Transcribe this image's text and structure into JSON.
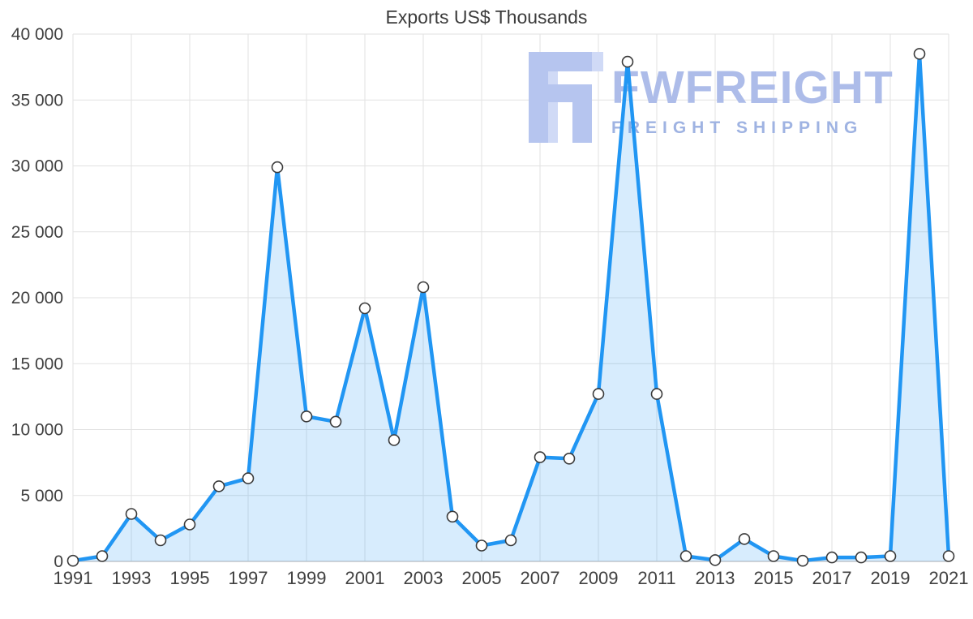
{
  "chart_data": {
    "type": "area",
    "title": "Exports US$ Thousands",
    "xlabel": "",
    "ylabel": "",
    "x": [
      1991,
      1992,
      1993,
      1994,
      1995,
      1996,
      1997,
      1998,
      1999,
      2000,
      2001,
      2002,
      2003,
      2004,
      2005,
      2006,
      2007,
      2008,
      2009,
      2010,
      2011,
      2012,
      2013,
      2014,
      2015,
      2016,
      2017,
      2018,
      2019,
      2020,
      2021
    ],
    "values": [
      50,
      400,
      3600,
      1600,
      2800,
      5700,
      6300,
      29900,
      11000,
      10600,
      19200,
      9200,
      20800,
      3400,
      1200,
      1600,
      7900,
      7800,
      12700,
      37900,
      12700,
      400,
      100,
      1700,
      400,
      50,
      300,
      300,
      400,
      38500,
      400
    ],
    "ylim": [
      0,
      40000
    ],
    "ytick_step": 5000,
    "ytick_labels": [
      "0",
      "5 000",
      "10 000",
      "15 000",
      "20 000",
      "25 000",
      "30 000",
      "35 000",
      "40 000"
    ],
    "xtick_labels": [
      "1991",
      "1993",
      "1995",
      "1997",
      "1999",
      "2001",
      "2003",
      "2005",
      "2007",
      "2009",
      "2011",
      "2013",
      "2015",
      "2017",
      "2019",
      "2021"
    ],
    "grid": true,
    "legend": "none",
    "grid_color": "#e2e2e2",
    "axis_color": "#c9c9c9",
    "tick_color": "#404040",
    "line_color": "#2196f3",
    "fill_color": "rgba(33, 150, 243, 0.18)",
    "marker_fill": "#ffffff",
    "marker_stroke": "#3a3a3a"
  },
  "watermark": {
    "brand": "FWFREIGHT",
    "tagline": "FREIGHT SHIPPING",
    "brand_color": "#adbce9",
    "tagline_color": "#9fb3e2",
    "logo_color": "#b6c5ef",
    "logo_color_light": "#d0daf6"
  }
}
